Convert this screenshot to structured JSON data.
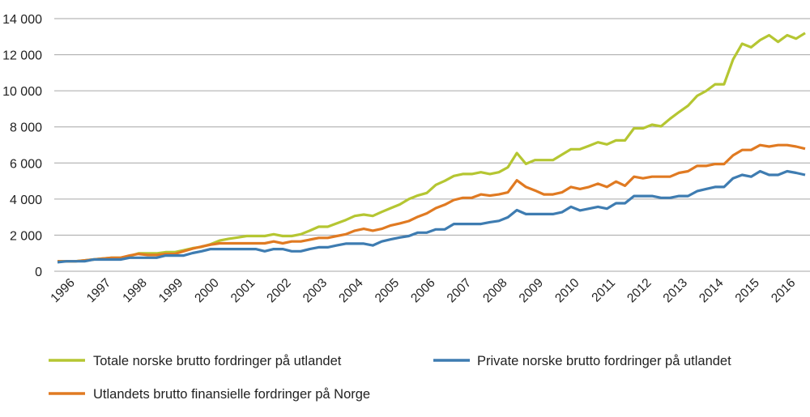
{
  "chart_data": {
    "type": "line",
    "title": "",
    "xlabel": "",
    "ylabel": "",
    "ylim": [
      0,
      14000
    ],
    "yticks": [
      "0",
      "2 000",
      "4 000",
      "6 000",
      "8 000",
      "10 000",
      "12 000",
      "14 000"
    ],
    "ytick_values": [
      0,
      2000,
      4000,
      6000,
      8000,
      10000,
      12000,
      14000
    ],
    "x_labels": [
      "1996",
      "1997",
      "1998",
      "1999",
      "2000",
      "2001",
      "2002",
      "2003",
      "2004",
      "2005",
      "2006",
      "2007",
      "2008",
      "2009",
      "2010",
      "2011",
      "2012",
      "2013",
      "2014",
      "2015",
      "2016"
    ],
    "points_per_year": 4,
    "grid": "horizontal",
    "legend_position": "bottom",
    "series": [
      {
        "name": "Totale norske brutto fordringer på utlandet",
        "color": "#b5c632",
        "values": [
          550,
          550,
          550,
          600,
          650,
          700,
          750,
          750,
          840,
          990,
          990,
          990,
          1060,
          1060,
          1160,
          1280,
          1350,
          1500,
          1700,
          1800,
          1870,
          1950,
          1950,
          1950,
          2050,
          1950,
          1950,
          2050,
          2250,
          2470,
          2470,
          2650,
          2840,
          3065,
          3140,
          3065,
          3290,
          3500,
          3700,
          4000,
          4200,
          4340,
          4790,
          5010,
          5280,
          5390,
          5390,
          5490,
          5390,
          5490,
          5760,
          6550,
          5950,
          6160,
          6160,
          6160,
          6460,
          6760,
          6760,
          6950,
          7150,
          7030,
          7250,
          7250,
          7920,
          7920,
          8120,
          8030,
          8450,
          8820,
          9170,
          9720,
          9990,
          10360,
          10360,
          11740,
          12610,
          12410,
          12810,
          13080,
          12710,
          13080,
          12890,
          13200
        ]
      },
      {
        "name": "Private norske brutto fordringer på utlandet",
        "color": "#3e7cb1",
        "values": [
          500,
          550,
          550,
          550,
          650,
          650,
          650,
          650,
          750,
          750,
          750,
          750,
          870,
          870,
          870,
          1010,
          1110,
          1230,
          1230,
          1230,
          1230,
          1230,
          1230,
          1110,
          1230,
          1230,
          1110,
          1110,
          1230,
          1330,
          1330,
          1430,
          1530,
          1530,
          1530,
          1430,
          1650,
          1770,
          1870,
          1950,
          2140,
          2140,
          2320,
          2320,
          2620,
          2620,
          2620,
          2620,
          2720,
          2790,
          2990,
          3390,
          3170,
          3170,
          3170,
          3170,
          3270,
          3570,
          3370,
          3470,
          3570,
          3470,
          3770,
          3770,
          4170,
          4170,
          4170,
          4070,
          4070,
          4170,
          4170,
          4440,
          4560,
          4670,
          4670,
          5150,
          5340,
          5240,
          5540,
          5340,
          5340,
          5540,
          5450,
          5340
        ]
      },
      {
        "name": "Utlandets brutto finansielle fordringer på Norge",
        "color": "#e07a22",
        "values": [
          550,
          550,
          550,
          600,
          650,
          700,
          750,
          750,
          870,
          960,
          900,
          900,
          960,
          960,
          1110,
          1250,
          1370,
          1470,
          1550,
          1550,
          1550,
          1550,
          1550,
          1550,
          1650,
          1550,
          1650,
          1650,
          1750,
          1850,
          1850,
          1950,
          2050,
          2250,
          2350,
          2250,
          2350,
          2540,
          2650,
          2780,
          3020,
          3210,
          3500,
          3690,
          3950,
          4070,
          4070,
          4260,
          4190,
          4260,
          4370,
          5040,
          4670,
          4480,
          4260,
          4260,
          4370,
          4670,
          4560,
          4670,
          4850,
          4670,
          4970,
          4740,
          5240,
          5150,
          5240,
          5240,
          5240,
          5450,
          5540,
          5840,
          5840,
          5940,
          5940,
          6420,
          6720,
          6720,
          6990,
          6910,
          6990,
          6990,
          6910,
          6790
        ]
      }
    ]
  }
}
